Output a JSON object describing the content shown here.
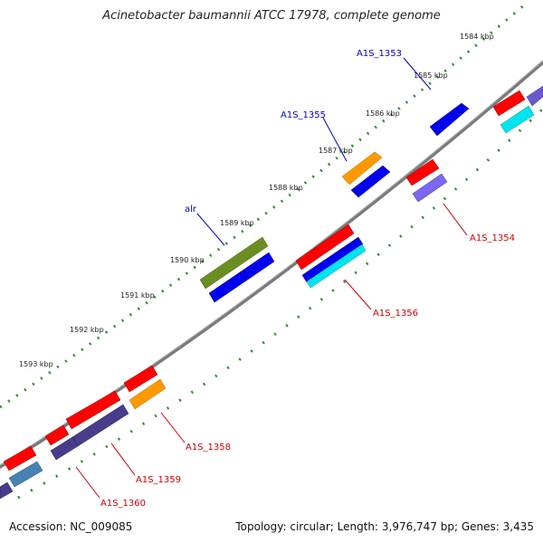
{
  "title": "Acinetobacter baumannii ATCC 17978, complete genome",
  "accession": "Accession: NC_009085",
  "summary": "Topology: circular; Length: 3,976,747 bp; Genes: 3,435",
  "kbp_ticks": [
    "1584 kbp",
    "1585 kbp",
    "1586 kbp",
    "1587 kbp",
    "1588 kbp",
    "1589 kbp",
    "1590 kbp",
    "1591 kbp",
    "1592 kbp",
    "1593 kbp"
  ],
  "gene_labels": {
    "outer": [
      "A1S_1353",
      "A1S_1355",
      "alr"
    ],
    "inner": [
      "A1S_1354",
      "A1S_1356",
      "A1S_1358",
      "A1S_1359",
      "A1S_1360"
    ]
  },
  "colors": {
    "backbone": "#7a7a7a",
    "tick": "#2e8b2e",
    "outer_label": "#0000cc",
    "inner_label": "#cc0000",
    "red": "#ff0000",
    "blue": "#0000ee",
    "orange": "#ff9900",
    "olive": "#6b8e23",
    "cyan": "#00e5ee",
    "slate": "#6a5acd",
    "darkslate": "#483d8b",
    "steel": "#4682b4"
  }
}
